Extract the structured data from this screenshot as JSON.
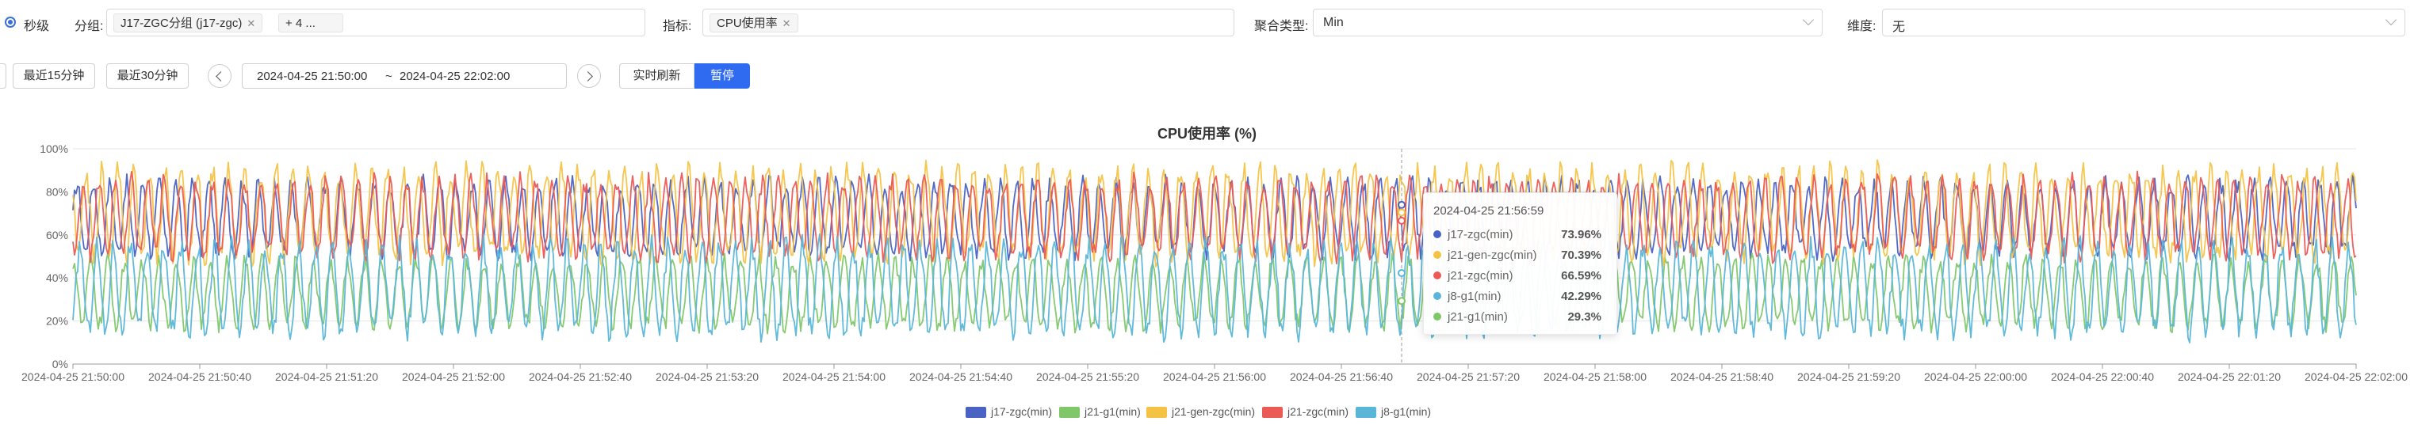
{
  "filters": {
    "granularity_label": "秒级",
    "group_label": "分组:",
    "group_tag": "J17-ZGC分组 (j17-zgc)",
    "group_more": "+ 4 ...",
    "metric_label": "指标:",
    "metric_tag": "CPU使用率",
    "agg_label": "聚合类型:",
    "agg_value": "Min",
    "dim_label": "维度:",
    "dim_value": "无"
  },
  "toolbar": {
    "last15": "最近15分钟",
    "last30": "最近30分钟",
    "start": "2024-04-25 21:50:00",
    "sep": "~",
    "end": "2024-04-25 22:02:00",
    "realtime": "实时刷新",
    "pause": "暂停"
  },
  "tooltip": {
    "time": "2024-04-25 21:56:59",
    "rows": [
      {
        "name": "j17-zgc(min)",
        "value": "73.96%",
        "color": "#4a62c3"
      },
      {
        "name": "j21-gen-zgc(min)",
        "value": "70.39%",
        "color": "#f5c344"
      },
      {
        "name": "j21-zgc(min)",
        "value": "66.59%",
        "color": "#ec5a56"
      },
      {
        "name": "j8-g1(min)",
        "value": "42.29%",
        "color": "#5ab6d9"
      },
      {
        "name": "j21-g1(min)",
        "value": "29.3%",
        "color": "#80c76a"
      }
    ]
  },
  "chart_data": {
    "type": "line",
    "title": "CPU使用率 (%)",
    "xlabel": "",
    "ylabel": "",
    "ylim": [
      0,
      100
    ],
    "yticks": [
      "0%",
      "20%",
      "40%",
      "60%",
      "80%",
      "100%"
    ],
    "x_range": [
      "2024-04-25 21:50:00",
      "2024-04-25 22:02:00"
    ],
    "x_ticks": [
      "2024-04-25 21:50:00",
      "2024-04-25 21:50:40",
      "2024-04-25 21:51:20",
      "2024-04-25 21:52:00",
      "2024-04-25 21:52:40",
      "2024-04-25 21:53:20",
      "2024-04-25 21:54:00",
      "2024-04-25 21:54:40",
      "2024-04-25 21:55:20",
      "2024-04-25 21:56:00",
      "2024-04-25 21:56:40",
      "2024-04-25 21:57:20",
      "2024-04-25 21:58:00",
      "2024-04-25 21:58:40",
      "2024-04-25 21:59:20",
      "2024-04-25 22:00:00",
      "2024-04-25 22:00:40",
      "2024-04-25 22:01:20",
      "2024-04-25 22:02:00"
    ],
    "cursor_time": "2024-04-25 21:56:59",
    "grid": true,
    "legend_position": "bottom",
    "series": [
      {
        "name": "j17-zgc(min)",
        "color": "#4a62c3",
        "mean": 68,
        "amp": 16,
        "period_s": 5.2,
        "cursor_value": 73.96
      },
      {
        "name": "j21-g1(min)",
        "color": "#80c76a",
        "mean": 33,
        "amp": 15,
        "period_s": 5.4,
        "cursor_value": 29.3
      },
      {
        "name": "j21-gen-zgc(min)",
        "color": "#f5c344",
        "mean": 70,
        "amp": 20,
        "period_s": 5.0,
        "cursor_value": 70.39
      },
      {
        "name": "j21-zgc(min)",
        "color": "#ec5a56",
        "mean": 68,
        "amp": 17,
        "period_s": 5.1,
        "cursor_value": 66.59
      },
      {
        "name": "j8-g1(min)",
        "color": "#5ab6d9",
        "mean": 35,
        "amp": 20,
        "period_s": 5.3,
        "cursor_value": 42.29
      }
    ]
  }
}
